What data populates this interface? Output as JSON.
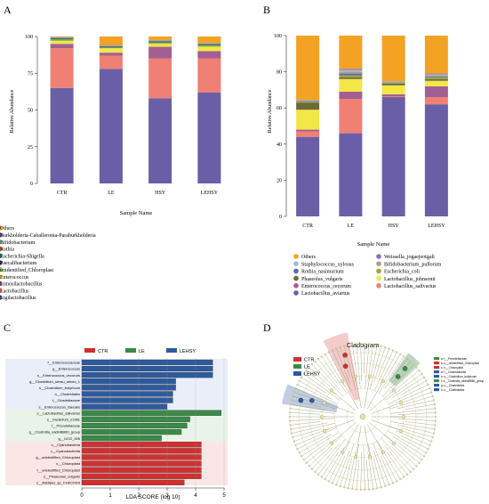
{
  "colors": {
    "Ligilactobacillus": "#6a5fa6",
    "Lactobacillus": "#f07f74",
    "Limosilactobacillus": "#a35f93",
    "Enterococcus": "#f3e647",
    "unidentified_Chloroplast": "#84c23e",
    "Faecalibacterium": "#3f3f6e",
    "Escherichia-Shigella": "#2e8c83",
    "Rothia": "#e66a60",
    "Bifidobacterium": "#9acb9c",
    "Burkholderia-Caballeronia-Paraburkholderia": "#7a5c9c",
    "Others": "#f4a223",
    "B_Lactobacillus_aviarius": "#6a5fa6",
    "B_Lactobacillus_salivarius": "#f07f74",
    "B_Enterococcus_cecorum": "#a35f93",
    "B_Lactobacillus_johnsonii": "#f3e647",
    "B_Phaseolus_vulgaris": "#6d6a36",
    "B_Escherichia_coli": "#a1a638",
    "B_Rothia_nasimurium": "#546bb0",
    "B_Bifidobacterium_pullorum": "#b09a8a",
    "B_Staphylococcus_xylosus": "#a3b8cc",
    "B_Weissella_jogaejeotgali": "#8a6fbd",
    "B_Others": "#f4a223",
    "CTR": "#d03030",
    "LE": "#3a8a48",
    "LEHSY": "#2e5a9e"
  },
  "panel_letters": [
    "A",
    "B",
    "C",
    "D"
  ],
  "chart_data": [
    {
      "type": "bar",
      "stacked": true,
      "panel": "A",
      "categories": [
        "CTR",
        "LE",
        "HSY",
        "LEHSY"
      ],
      "xlabel": "Sample Name",
      "ylabel": "Relative Abundance",
      "ylim": [
        0,
        100
      ],
      "yticks": [
        0,
        25,
        50,
        75,
        100
      ],
      "series": [
        {
          "name": "Ligilactobacillus",
          "values": [
            65,
            78,
            58,
            62
          ]
        },
        {
          "name": "Lactobacillus",
          "values": [
            27,
            9,
            27,
            23
          ]
        },
        {
          "name": "Limosilactobacillus",
          "values": [
            3,
            2,
            8,
            5
          ]
        },
        {
          "name": "Enterococcus",
          "values": [
            2,
            3,
            2,
            3
          ]
        },
        {
          "name": "unidentified_Chloroplast",
          "values": [
            1,
            0.5,
            1,
            1
          ]
        },
        {
          "name": "Faecalibacterium",
          "values": [
            0.5,
            0.5,
            0.5,
            0.5
          ]
        },
        {
          "name": "Escherichia-Shigella",
          "values": [
            0.5,
            0.5,
            0.5,
            0.5
          ]
        },
        {
          "name": "Rothia",
          "values": [
            0.3,
            0.3,
            0.3,
            0.3
          ]
        },
        {
          "name": "Bifidobacterium",
          "values": [
            0.2,
            0.2,
            0.2,
            0.2
          ]
        },
        {
          "name": "Burkholderia-Caballeronia-Paraburkholderia",
          "values": [
            0.2,
            0.2,
            0.2,
            0.2
          ]
        },
        {
          "name": "Others",
          "values": [
            0.3,
            5.8,
            2.3,
            4.3
          ]
        }
      ],
      "legend": [
        "Others",
        "Burkholderia-Caballeronia-Paraburkholderia",
        "Bifidobacterium",
        "Rothia",
        "Escherichia-Shigella",
        "Faecalibacterium",
        "unidentified_Chloroplast",
        "Enterococcus",
        "Limosilactobacillus",
        "Lactobacillus",
        "Ligilactobacillus"
      ]
    },
    {
      "type": "bar",
      "stacked": true,
      "panel": "B",
      "categories": [
        "CTR",
        "LE",
        "HSY",
        "LEHSY"
      ],
      "xlabel": "Sample Name",
      "ylabel": "Relative Abundance",
      "ylim": [
        0,
        100
      ],
      "yticks": [
        0,
        20,
        40,
        60,
        80,
        100
      ],
      "series": [
        {
          "name": "Lactobacillus_aviarius",
          "values": [
            44,
            46,
            66,
            62
          ]
        },
        {
          "name": "Lactobacillus_salivarius",
          "values": [
            3,
            19,
            0.5,
            4
          ]
        },
        {
          "name": "Enterococcus_cecorum",
          "values": [
            1,
            4,
            1,
            6
          ]
        },
        {
          "name": "Lactobacillus_johnsonii",
          "values": [
            11,
            7,
            5,
            3
          ]
        },
        {
          "name": "Phaseolus_vulgaris",
          "values": [
            4,
            1,
            1,
            1
          ]
        },
        {
          "name": "Escherichia_coli",
          "values": [
            0.5,
            1,
            0.5,
            1
          ]
        },
        {
          "name": "Rothia_nasimurium",
          "values": [
            0.3,
            1,
            0.2,
            0.5
          ]
        },
        {
          "name": "Bifidobacterium_pullorum",
          "values": [
            0.2,
            1,
            0.2,
            0.5
          ]
        },
        {
          "name": "Staphylococcus_xylosus",
          "values": [
            0.2,
            1,
            0.2,
            0.5
          ]
        },
        {
          "name": "Weissella_jogaejeotgali",
          "values": [
            0.2,
            0.5,
            0.2,
            0.5
          ]
        },
        {
          "name": "Others",
          "values": [
            35.6,
            18.5,
            25.2,
            21
          ]
        }
      ],
      "legend": [
        "Others",
        "Weissella_jogaejeotgali",
        "Staphylococcus_xylosus",
        "Bifidobacterium_pullorum",
        "Rothia_nasimurium",
        "Escherichia_coli",
        "Phaseolus_vulgaris",
        "Lactobacillus_johnsonii",
        "Enterococcus_cecorum",
        "Lactobacillus_salivarius",
        "Lactobacillus_aviarius"
      ]
    },
    {
      "type": "bar",
      "orientation": "horizontal",
      "panel": "C",
      "xlabel": "LDA SCORE (log 10)",
      "xlim": [
        0,
        5
      ],
      "xticks": [
        0,
        1,
        2,
        3,
        4,
        5
      ],
      "legend": [
        "CTR",
        "LE",
        "LEHSY"
      ],
      "bars": [
        {
          "label": "f__Enterococcaceae",
          "value": 4.6,
          "group": "LEHSY"
        },
        {
          "label": "g__Enterococcus",
          "value": 4.6,
          "group": "LEHSY"
        },
        {
          "label": "s__Enterococcus_cecorum",
          "value": 4.6,
          "group": "LEHSY"
        },
        {
          "label": "g__Clostridium_sensu_stricto_1",
          "value": 3.3,
          "group": "LEHSY"
        },
        {
          "label": "s__Clostridium_butyricum",
          "value": 3.3,
          "group": "LEHSY"
        },
        {
          "label": "o__Clostridiales",
          "value": 3.2,
          "group": "LEHSY"
        },
        {
          "label": "f__Clostridiaceae",
          "value": 3.2,
          "group": "LEHSY"
        },
        {
          "label": "s__Enterococcus_faecalis",
          "value": 3.0,
          "group": "LEHSY"
        },
        {
          "label": "s__Lactobacillus_salivarius",
          "value": 4.9,
          "group": "LE"
        },
        {
          "label": "s__bacterium_s1981",
          "value": 3.8,
          "group": "LE"
        },
        {
          "label": "f__Prevotellaceae",
          "value": 3.7,
          "group": "LE"
        },
        {
          "label": "g__Clostridia_vadinBB60_group",
          "value": 3.5,
          "group": "LE"
        },
        {
          "label": "g__UCG_005",
          "value": 2.8,
          "group": "LE"
        },
        {
          "label": "o__Cyanobacteria",
          "value": 4.2,
          "group": "CTR"
        },
        {
          "label": "c__Cyanobacteriia",
          "value": 4.2,
          "group": "CTR"
        },
        {
          "label": "g__unidentified_Chloroplast",
          "value": 4.2,
          "group": "CTR"
        },
        {
          "label": "o__Chloroplast",
          "value": 4.2,
          "group": "CTR"
        },
        {
          "label": "f__unidentified_Chloroplast",
          "value": 4.2,
          "group": "CTR"
        },
        {
          "label": "s__Phaseolus_vulgaris",
          "value": 4.2,
          "group": "CTR"
        },
        {
          "label": "s__Alistipes_sp_CHKCI003",
          "value": 3.6,
          "group": "CTR"
        }
      ]
    }
  ],
  "cladogram": {
    "title": "Cladogram",
    "legend": [
      "CTR",
      "LE",
      "LEHSY"
    ],
    "key": [
      "a: f__Prevotellaceae",
      "b: s__unidentified_Chloroplast",
      "c: o__Chloroplast",
      "d: f__Clostridiaceae",
      "e: s__Clostridium_butyricum",
      "f: s__Clostridia_vadinBB60_group",
      "g: o__Clostridiales",
      "h: o__Clostridiales"
    ]
  }
}
